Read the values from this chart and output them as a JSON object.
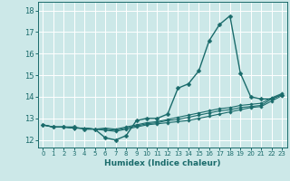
{
  "xlabel": "Humidex (Indice chaleur)",
  "bg_color": "#cce8e8",
  "grid_color": "#ffffff",
  "line_color": "#1a6b6b",
  "xlim": [
    -0.5,
    23.5
  ],
  "ylim": [
    11.65,
    18.4
  ],
  "xticks": [
    0,
    1,
    2,
    3,
    4,
    5,
    6,
    7,
    8,
    9,
    10,
    11,
    12,
    13,
    14,
    15,
    16,
    17,
    18,
    19,
    20,
    21,
    22,
    23
  ],
  "yticks": [
    12,
    13,
    14,
    15,
    16,
    17,
    18
  ],
  "main_line": [
    12.7,
    12.6,
    12.6,
    12.6,
    12.5,
    12.5,
    12.1,
    12.0,
    12.2,
    12.9,
    13.0,
    13.0,
    13.2,
    14.4,
    14.6,
    15.2,
    16.6,
    17.35,
    17.75,
    15.1,
    14.0,
    13.9,
    13.9,
    14.1
  ],
  "flat_lines": [
    [
      12.7,
      12.6,
      12.6,
      12.55,
      12.55,
      12.5,
      12.45,
      12.4,
      12.5,
      12.6,
      12.7,
      12.75,
      12.8,
      12.85,
      12.9,
      13.0,
      13.1,
      13.2,
      13.3,
      13.4,
      13.5,
      13.55,
      13.8,
      14.05
    ],
    [
      12.7,
      12.6,
      12.6,
      12.55,
      12.55,
      12.5,
      12.5,
      12.45,
      12.55,
      12.65,
      12.75,
      12.8,
      12.9,
      12.95,
      13.05,
      13.15,
      13.25,
      13.35,
      13.4,
      13.5,
      13.55,
      13.6,
      13.9,
      14.1
    ],
    [
      12.7,
      12.6,
      12.6,
      12.55,
      12.55,
      12.5,
      12.55,
      12.5,
      12.6,
      12.7,
      12.8,
      12.85,
      12.95,
      13.05,
      13.15,
      13.25,
      13.35,
      13.45,
      13.5,
      13.6,
      13.65,
      13.7,
      13.95,
      14.15
    ]
  ]
}
